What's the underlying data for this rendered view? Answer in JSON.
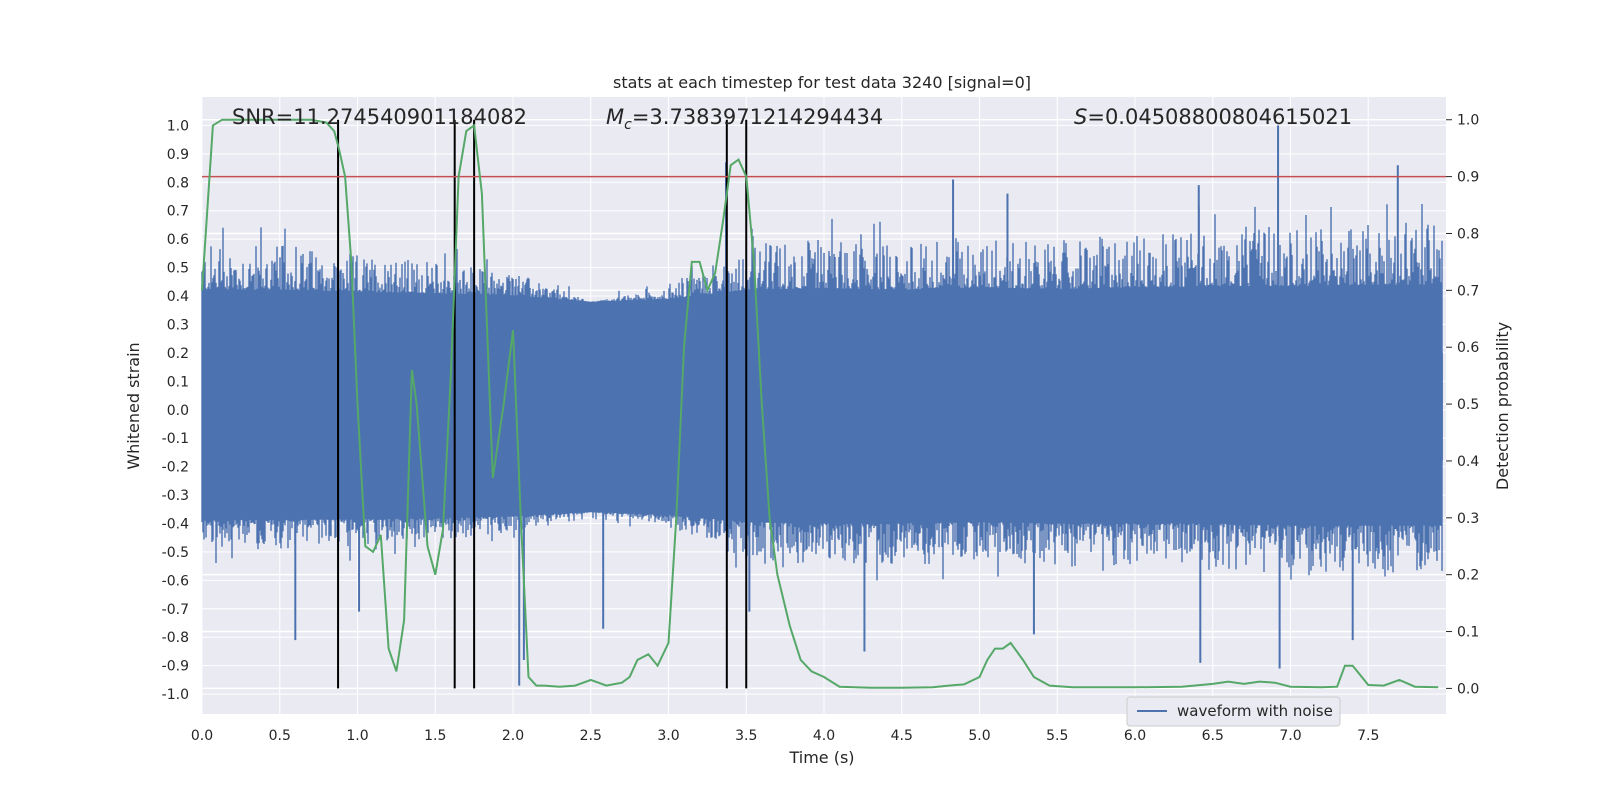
{
  "chart_data": {
    "type": "line",
    "title": "stats at each timestep for test data 3240 [signal=0]",
    "xlabel": "Time (s)",
    "ylabel": "Whitened strain",
    "y2label": "Detection probability",
    "xlim": [
      0.0,
      8.0
    ],
    "ylim": [
      -1.07,
      1.1
    ],
    "y2lim": [
      -0.045,
      1.04
    ],
    "xticks": [
      "0.0",
      "0.5",
      "1.0",
      "1.5",
      "2.0",
      "2.5",
      "3.0",
      "3.5",
      "4.0",
      "4.5",
      "5.0",
      "5.5",
      "6.0",
      "6.5",
      "7.0",
      "7.5"
    ],
    "yticks": [
      "1.0",
      "0.9",
      "0.8",
      "0.7",
      "0.6",
      "0.5",
      "0.4",
      "0.3",
      "0.2",
      "0.1",
      "0.0",
      "-0.1",
      "-0.2",
      "-0.3",
      "-0.4",
      "-0.5",
      "-0.6",
      "-0.7",
      "-0.8",
      "-0.9",
      "-1.0"
    ],
    "y2ticks": [
      "0.0",
      "0.1",
      "0.2",
      "0.3",
      "0.4",
      "0.5",
      "0.6",
      "0.7",
      "0.8",
      "0.9",
      "1.0"
    ],
    "grid": true,
    "legend": {
      "placement": "lower-right",
      "entries": [
        "waveform with noise"
      ]
    },
    "annotations": {
      "snr": "SNR=11.274540901184082",
      "mc_symbol": "M",
      "mc_sub": "c",
      "mc_value": "=3.7383971214294434",
      "s_symbol": "S",
      "s_value": "=0.04508800804615021"
    },
    "threshold": {
      "y2": 0.9,
      "color": "#c44e52"
    },
    "event_lines_x": [
      0.875,
      1.625,
      1.75,
      3.375,
      3.5
    ],
    "event_lines_y2": [
      0.0,
      1.0
    ],
    "waveform": {
      "name": "waveform with noise",
      "color": "#4c72b0",
      "envelope_x": [
        0.0,
        0.5,
        1.0,
        1.5,
        2.0,
        2.5,
        3.0,
        3.5,
        4.0,
        4.5,
        5.0,
        5.5,
        6.0,
        6.5,
        7.0,
        7.5,
        8.0
      ],
      "envelope_upper": [
        0.55,
        0.55,
        0.52,
        0.5,
        0.47,
        0.38,
        0.42,
        0.55,
        0.57,
        0.55,
        0.58,
        0.56,
        0.58,
        0.6,
        0.6,
        0.62,
        0.62
      ],
      "envelope_lower": [
        -0.47,
        -0.47,
        -0.46,
        -0.45,
        -0.42,
        -0.36,
        -0.4,
        -0.5,
        -0.52,
        -0.52,
        -0.5,
        -0.52,
        -0.52,
        -0.52,
        -0.55,
        -0.55,
        -0.55
      ],
      "spikes": [
        {
          "x": 0.6,
          "y": -0.81
        },
        {
          "x": 1.01,
          "y": -0.71
        },
        {
          "x": 1.63,
          "y": 0.63
        },
        {
          "x": 2.04,
          "y": -0.97
        },
        {
          "x": 2.07,
          "y": -0.88
        },
        {
          "x": 2.58,
          "y": -0.77
        },
        {
          "x": 3.37,
          "y": 0.87
        },
        {
          "x": 3.52,
          "y": -0.71
        },
        {
          "x": 4.26,
          "y": -0.85
        },
        {
          "x": 4.83,
          "y": 0.81
        },
        {
          "x": 5.18,
          "y": 0.76
        },
        {
          "x": 5.35,
          "y": -0.79
        },
        {
          "x": 6.41,
          "y": 0.79
        },
        {
          "x": 6.42,
          "y": -0.89
        },
        {
          "x": 6.92,
          "y": 1.0
        },
        {
          "x": 6.93,
          "y": -0.91
        },
        {
          "x": 7.4,
          "y": -0.81
        },
        {
          "x": 7.69,
          "y": 0.86
        }
      ]
    },
    "detection_probability": {
      "color": "#55a868",
      "x": [
        0.0,
        0.07,
        0.13,
        0.2,
        0.3,
        0.4,
        0.5,
        0.6,
        0.7,
        0.8,
        0.85,
        0.88,
        0.92,
        0.96,
        1.0,
        1.05,
        1.1,
        1.15,
        1.2,
        1.25,
        1.3,
        1.35,
        1.38,
        1.45,
        1.5,
        1.55,
        1.6,
        1.65,
        1.7,
        1.75,
        1.8,
        1.87,
        1.94,
        2.0,
        2.05,
        2.1,
        2.15,
        2.2,
        2.3,
        2.4,
        2.5,
        2.55,
        2.6,
        2.7,
        2.75,
        2.8,
        2.87,
        2.93,
        3.0,
        3.05,
        3.1,
        3.15,
        3.2,
        3.25,
        3.3,
        3.35,
        3.4,
        3.45,
        3.5,
        3.55,
        3.6,
        3.65,
        3.7,
        3.78,
        3.85,
        3.92,
        4.0,
        4.1,
        4.2,
        4.3,
        4.5,
        4.7,
        4.8,
        4.9,
        5.0,
        5.05,
        5.1,
        5.15,
        5.2,
        5.28,
        5.35,
        5.45,
        5.6,
        5.8,
        6.0,
        6.3,
        6.5,
        6.55,
        6.6,
        6.7,
        6.8,
        6.9,
        7.0,
        7.2,
        7.3,
        7.35,
        7.4,
        7.5,
        7.6,
        7.7,
        7.8,
        7.95
      ],
      "y": [
        0.7,
        0.99,
        1.0,
        1.0,
        1.0,
        1.0,
        1.0,
        1.0,
        1.0,
        0.995,
        0.98,
        0.95,
        0.9,
        0.75,
        0.5,
        0.25,
        0.24,
        0.27,
        0.07,
        0.03,
        0.12,
        0.56,
        0.5,
        0.25,
        0.2,
        0.28,
        0.55,
        0.9,
        0.98,
        0.99,
        0.87,
        0.37,
        0.5,
        0.63,
        0.3,
        0.02,
        0.005,
        0.005,
        0.003,
        0.005,
        0.015,
        0.01,
        0.005,
        0.01,
        0.02,
        0.05,
        0.06,
        0.04,
        0.08,
        0.3,
        0.6,
        0.75,
        0.75,
        0.7,
        0.73,
        0.82,
        0.92,
        0.93,
        0.9,
        0.75,
        0.5,
        0.3,
        0.2,
        0.11,
        0.05,
        0.03,
        0.02,
        0.003,
        0.002,
        0.001,
        0.001,
        0.002,
        0.005,
        0.007,
        0.02,
        0.05,
        0.07,
        0.07,
        0.08,
        0.05,
        0.02,
        0.005,
        0.002,
        0.002,
        0.002,
        0.003,
        0.008,
        0.01,
        0.012,
        0.008,
        0.012,
        0.01,
        0.003,
        0.002,
        0.003,
        0.04,
        0.04,
        0.006,
        0.005,
        0.015,
        0.003,
        0.002
      ]
    }
  }
}
